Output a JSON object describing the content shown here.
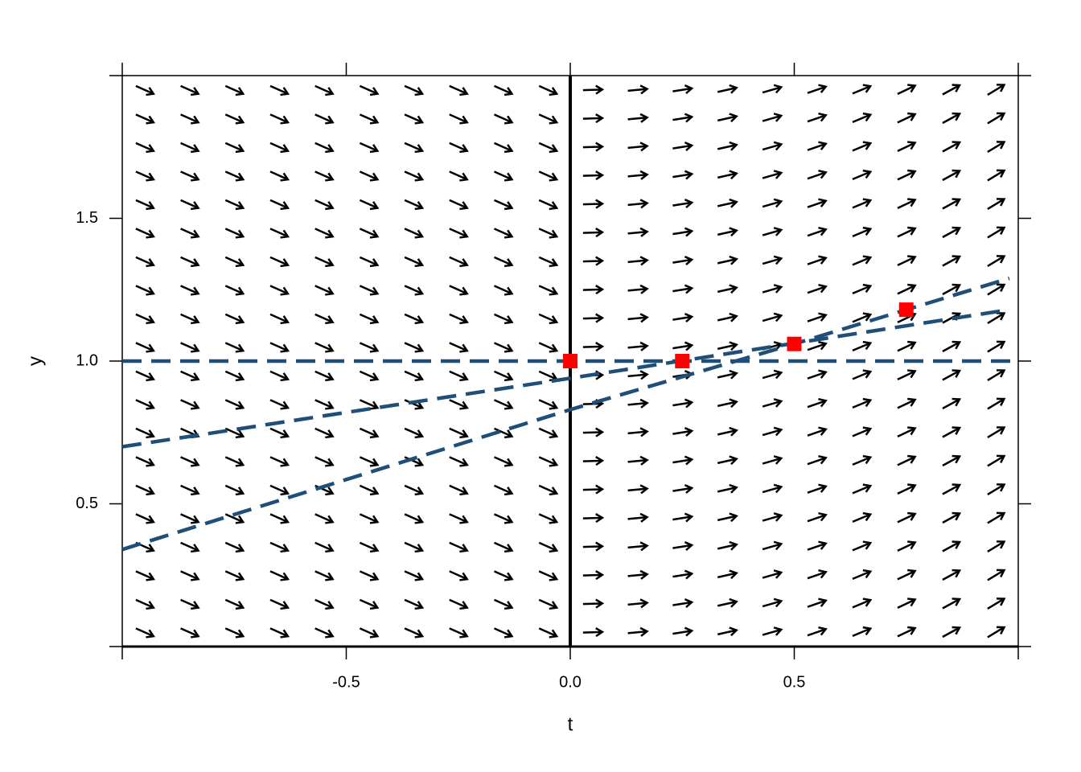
{
  "chart_data": {
    "type": "direction_field",
    "x_label": "t",
    "y_label": "y",
    "xlim": [
      -1,
      1
    ],
    "ylim": [
      0,
      2
    ],
    "xticks": [
      -0.5,
      {
        "value": 0,
        "label": "0.0"
      },
      0.5
    ],
    "yticks": [
      0.5,
      {
        "value": 1,
        "label": "1.0"
      },
      1.5
    ],
    "vline": 0,
    "field": {
      "color": "#000000",
      "t": [
        -0.95,
        -0.85,
        -0.75,
        -0.65,
        -0.55,
        -0.45,
        -0.35,
        -0.25,
        -0.15,
        -0.05,
        0.05,
        0.15,
        0.25,
        0.35,
        0.45,
        0.55,
        0.65,
        0.75,
        0.85,
        0.95
      ],
      "y": [
        0.05,
        0.15,
        0.25,
        0.35,
        0.45,
        0.55,
        0.65,
        0.75,
        0.85,
        0.95,
        1.05,
        1.15,
        1.25,
        1.35,
        1.45,
        1.55,
        1.65,
        1.75,
        1.85,
        1.95
      ],
      "slopes": [
        -0.7,
        -0.7,
        -0.7,
        -0.7,
        -0.7,
        -0.7,
        -0.7,
        -0.7,
        -0.7,
        -0.7,
        0.05,
        0.15,
        0.25,
        0.35,
        0.45,
        0.55,
        0.65,
        0.75,
        0.85,
        0.95
      ]
    },
    "lines": [
      {
        "color": "#1f4e79",
        "x": [
          -1,
          1
        ],
        "values": [
          1,
          1
        ]
      },
      {
        "color": "#1f4e79",
        "x": [
          -1,
          0,
          0.98
        ],
        "values": [
          0.7,
          0.94,
          1.18
        ]
      },
      {
        "color": "#1f4e79",
        "x": [
          -1,
          0,
          0.5,
          0.98
        ],
        "values": [
          0.34,
          0.83,
          1.06,
          1.29
        ]
      }
    ],
    "points": {
      "color": "#ff0000",
      "x": [
        0,
        0.25,
        0.5,
        0.75
      ],
      "values": [
        1,
        1,
        1.06,
        1.18
      ]
    }
  }
}
